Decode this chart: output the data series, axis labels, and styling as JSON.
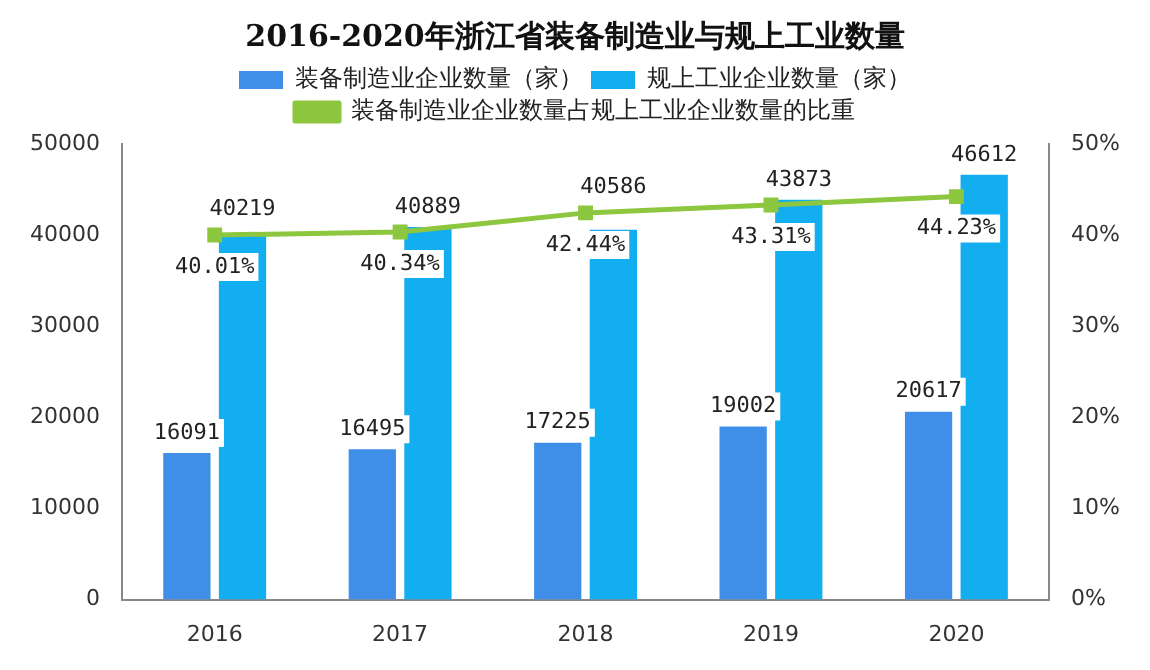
{
  "chart_data": {
    "type": "bar",
    "title": "2016-2020年浙江省装备制造业与规上工业数量",
    "categories": [
      "2016",
      "2017",
      "2018",
      "2019",
      "2020"
    ],
    "series": [
      {
        "name": "装备制造业企业数量（家）",
        "color": "#3f8fe8",
        "values": [
          16091,
          16495,
          17225,
          19002,
          20617
        ],
        "value_labels": [
          "16091",
          "16495",
          "17225",
          "19002",
          "20617"
        ]
      },
      {
        "name": "规上工业企业数量（家）",
        "color": "#12aef0",
        "values": [
          40219,
          40889,
          40586,
          43873,
          46612
        ],
        "value_labels": [
          "40219",
          "40889",
          "40586",
          "43873",
          "46612"
        ]
      },
      {
        "name": "装备制造业企业数量占规上工业企业数量的比重",
        "type": "line",
        "axis": "y2",
        "color": "#8dc63f",
        "values": [
          40.01,
          40.34,
          42.44,
          43.31,
          44.23
        ],
        "value_labels": [
          "40.01%",
          "40.34%",
          "42.44%",
          "43.31%",
          "44.23%"
        ]
      }
    ],
    "ylim": [
      0,
      50000
    ],
    "yticks": [
      0,
      10000,
      20000,
      30000,
      40000,
      50000
    ],
    "y2lim": [
      0,
      50
    ],
    "y2ticks": [
      {
        "value": 0,
        "label": "0%"
      },
      {
        "value": 10,
        "label": "10%"
      },
      {
        "value": 20,
        "label": "20%"
      },
      {
        "value": 30,
        "label": "30%"
      },
      {
        "value": 40,
        "label": "40%"
      },
      {
        "value": 50,
        "label": "50%"
      }
    ],
    "legend": "top",
    "marker": "square",
    "line_style": "solid"
  }
}
